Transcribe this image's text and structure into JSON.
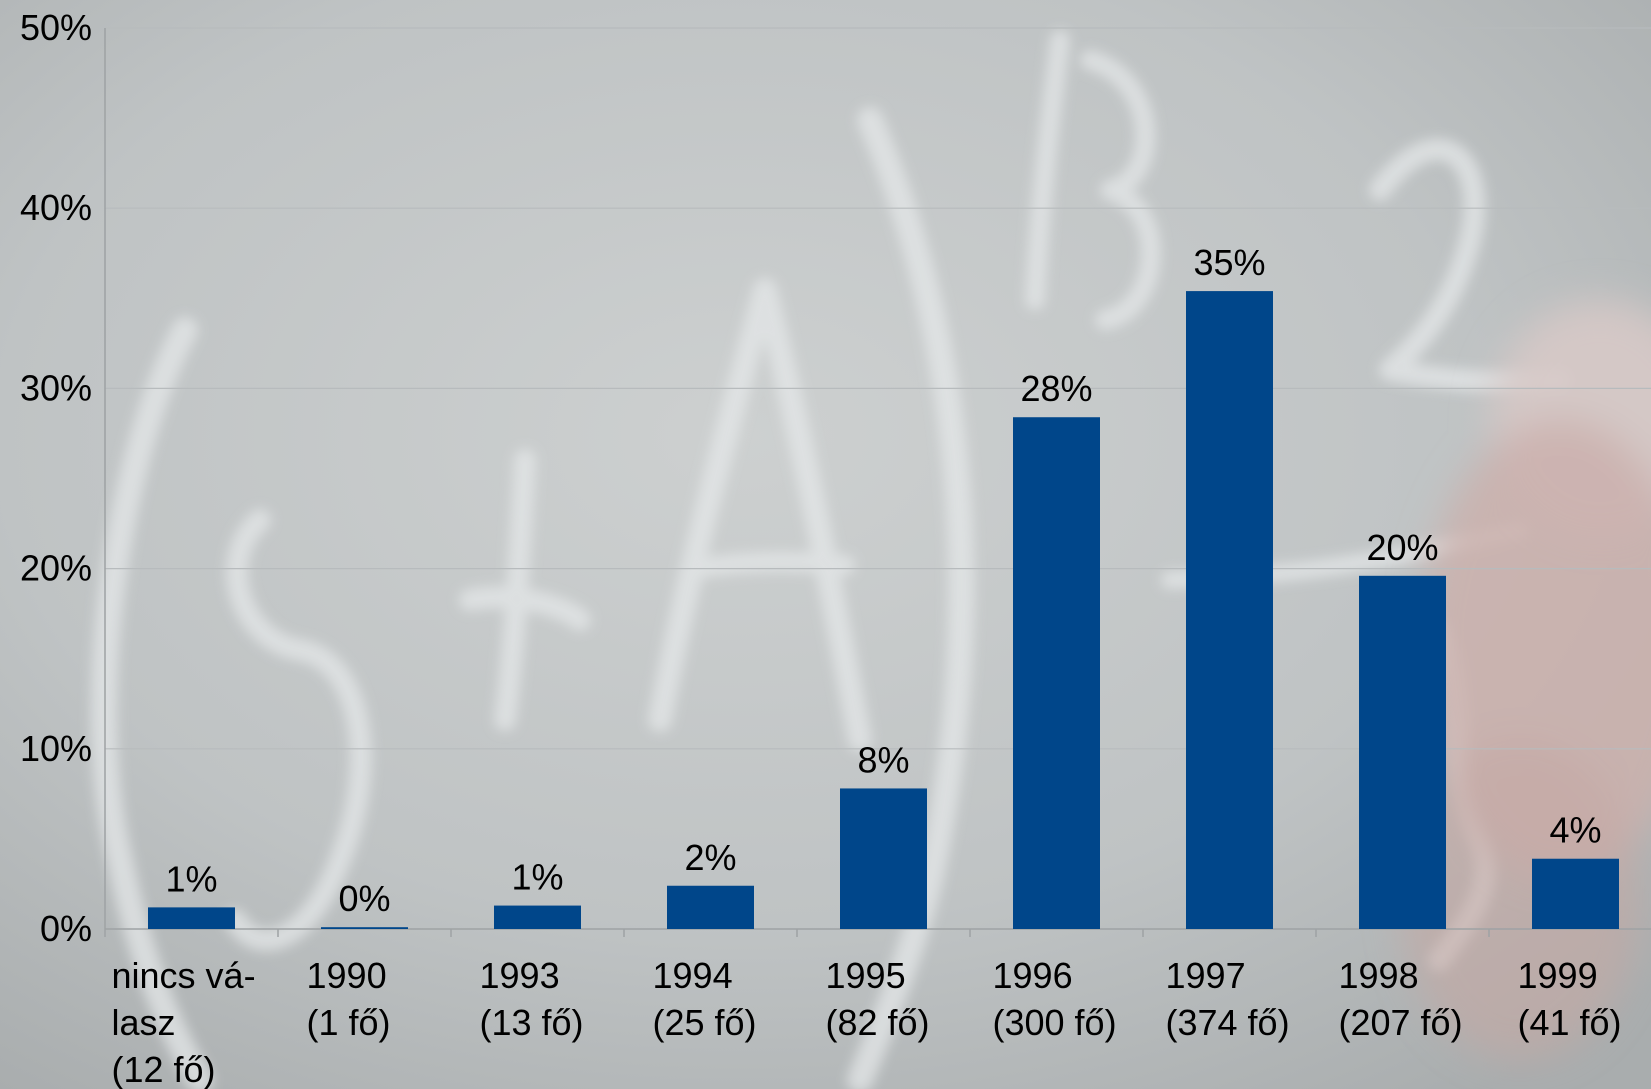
{
  "chart_data": {
    "type": "bar",
    "categories": [
      [
        "nincs vá-",
        "lasz",
        "(12 fő)"
      ],
      [
        "1990",
        "(1 fő)"
      ],
      [
        "1993",
        "(13 fő)"
      ],
      [
        "1994",
        "(25 fő)"
      ],
      [
        "1995",
        "(82 fő)"
      ],
      [
        "1996",
        "(300 fő)"
      ],
      [
        "1997",
        "(374 fő)"
      ],
      [
        "1998",
        "(207 fő)"
      ],
      [
        "1999",
        "(41 fő)"
      ]
    ],
    "values": [
      1.2,
      0.1,
      1.3,
      2.4,
      7.8,
      28.4,
      35.4,
      19.6,
      3.9
    ],
    "data_labels": [
      "1%",
      "0%",
      "1%",
      "2%",
      "8%",
      "28%",
      "35%",
      "20%",
      "4%"
    ],
    "ylim": [
      0,
      50
    ],
    "yticks": [
      0,
      10,
      20,
      30,
      40,
      50
    ],
    "ytick_labels": [
      "0%",
      "10%",
      "20%",
      "30%",
      "40%",
      "50%"
    ],
    "grid": true,
    "bar_color": "#00468a",
    "grid_color": "#b7bbbd",
    "background": "chalkboard photo with chalk math scribbles"
  }
}
